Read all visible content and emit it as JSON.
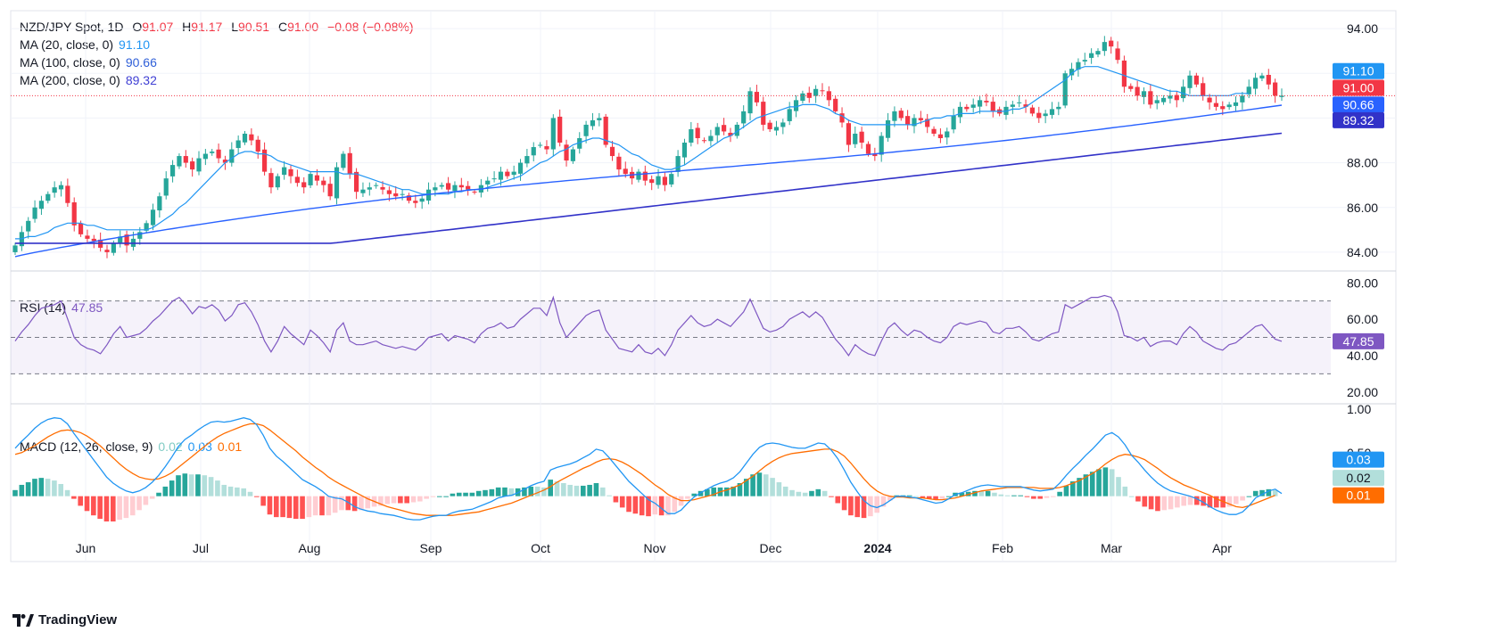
{
  "header": {
    "symbol": "NZD/JPY Spot, 1D",
    "ohlc": {
      "o_label": "O",
      "o": "91.07",
      "h_label": "H",
      "h": "91.17",
      "l_label": "L",
      "l": "90.51",
      "c_label": "C",
      "c": "91.00",
      "change": "−0.08 (−0.08%)"
    },
    "ma20": {
      "label": "MA (20, close, 0)",
      "value": "91.10"
    },
    "ma100": {
      "label": "MA (100, close, 0)",
      "value": "90.66"
    },
    "ma200": {
      "label": "MA (200, close, 0)",
      "value": "89.32"
    }
  },
  "rsi_legend": {
    "label": "RSI (14)",
    "value": "47.85"
  },
  "macd_legend": {
    "label": "MACD (12, 26, close, 9)",
    "hist": "0.02",
    "macd": "0.03",
    "signal": "0.01"
  },
  "branding": {
    "name": "TradingView"
  },
  "colors": {
    "up": "#26a69a",
    "down": "#f23645",
    "ma20": "#2196f3",
    "ma100": "#2962ff",
    "ma200": "#3232c8",
    "rsi": "#7e57c2",
    "macd": "#2196f3",
    "signal": "#ff6d00"
  },
  "chart_data": [
    {
      "type": "candlestick",
      "title": "NZD/JPY Spot, 1D",
      "x_ticks": [
        "Jun",
        "Jul",
        "Aug",
        "Sep",
        "Oct",
        "Nov",
        "Dec",
        "2024",
        "Feb",
        "Mar",
        "Apr"
      ],
      "y_ticks": [
        "84.00",
        "86.00",
        "88.00",
        "90.00",
        "92.00",
        "94.00"
      ],
      "ylim": [
        83.2,
        94.8
      ],
      "close_series": [
        84.3,
        84.9,
        85.4,
        86.0,
        86.3,
        86.6,
        86.9,
        87.0,
        86.2,
        85.2,
        84.8,
        84.6,
        84.5,
        84.2,
        84.0,
        84.4,
        84.7,
        84.3,
        84.6,
        84.9,
        85.3,
        85.9,
        86.5,
        87.3,
        87.9,
        88.3,
        88.0,
        87.7,
        88.2,
        88.4,
        88.5,
        88.2,
        88.0,
        88.6,
        89.0,
        89.3,
        89.0,
        88.5,
        87.6,
        86.9,
        87.4,
        87.8,
        87.4,
        87.1,
        86.9,
        87.5,
        87.2,
        87.0,
        86.5,
        87.8,
        88.4,
        87.5,
        86.7,
        86.8,
        86.9,
        87.0,
        86.8,
        86.6,
        86.5,
        86.6,
        86.3,
        86.2,
        86.4,
        86.8,
        86.9,
        87.0,
        86.8,
        87.0,
        86.9,
        86.8,
        86.7,
        87.0,
        87.2,
        87.3,
        87.6,
        87.4,
        87.6,
        88.0,
        88.3,
        88.7,
        88.8,
        88.6,
        90.0,
        88.9,
        88.1,
        88.6,
        89.1,
        89.7,
        89.9,
        90.0,
        88.8,
        88.3,
        87.7,
        87.5,
        87.3,
        87.6,
        87.2,
        87.1,
        87.4,
        87.0,
        87.5,
        88.3,
        88.9,
        89.5,
        89.1,
        89.0,
        89.2,
        89.6,
        89.4,
        89.2,
        89.7,
        90.3,
        91.2,
        90.7,
        89.7,
        89.5,
        89.6,
        89.8,
        90.4,
        90.8,
        91.1,
        90.9,
        91.3,
        91.2,
        90.8,
        90.3,
        89.8,
        88.8,
        89.3,
        88.9,
        88.4,
        88.3,
        89.2,
        89.9,
        90.3,
        90.0,
        89.7,
        90.0,
        89.9,
        89.6,
        89.3,
        89.1,
        89.4,
        90.1,
        90.5,
        90.4,
        90.6,
        90.8,
        90.7,
        90.3,
        90.2,
        90.5,
        90.6,
        90.7,
        90.5,
        90.2,
        90.0,
        90.2,
        90.4,
        90.5,
        92.0,
        92.2,
        92.5,
        92.6,
        92.9,
        93.0,
        93.4,
        93.2,
        92.6,
        91.4,
        91.3,
        91.0,
        91.2,
        90.6,
        90.8,
        90.9,
        91.0,
        90.8,
        91.4,
        91.9,
        91.5,
        91.0,
        90.7,
        90.5,
        90.4,
        90.6,
        90.7,
        91.0,
        91.4,
        91.8,
        91.9,
        91.5,
        91.0,
        91.0
      ],
      "ma20": [
        84.6,
        84.6,
        84.7,
        84.7,
        84.8,
        84.9,
        85.1,
        85.2,
        85.3,
        85.3,
        85.3,
        85.2,
        85.2,
        85.1,
        85.0,
        85.0,
        85.0,
        85.0,
        85.0,
        85.0,
        85.0,
        85.1,
        85.3,
        85.5,
        85.7,
        86.0,
        86.2,
        86.5,
        86.8,
        87.1,
        87.4,
        87.7,
        88.0,
        88.2,
        88.4,
        88.5,
        88.5,
        88.4,
        88.4,
        88.3,
        88.1,
        88.0,
        87.9,
        87.8,
        87.7,
        87.6,
        87.6,
        87.6,
        87.6,
        87.6,
        87.5,
        87.5,
        87.5,
        87.4,
        87.3,
        87.2,
        87.1,
        87.0,
        86.9,
        86.8,
        86.8,
        86.7,
        86.6,
        86.6,
        86.6,
        86.6,
        86.6,
        86.7,
        86.7,
        86.8,
        86.8,
        86.8,
        86.9,
        87.0,
        87.1,
        87.2,
        87.3,
        87.4,
        87.6,
        87.8,
        88.0,
        88.1,
        88.3,
        88.5,
        88.6,
        88.8,
        88.9,
        89.0,
        89.1,
        89.1,
        89.0,
        88.9,
        88.8,
        88.6,
        88.4,
        88.3,
        88.1,
        87.9,
        87.8,
        87.7,
        87.7,
        87.8,
        87.9,
        88.1,
        88.3,
        88.5,
        88.7,
        88.9,
        89.1,
        89.2,
        89.4,
        89.6,
        89.8,
        90.0,
        90.1,
        90.2,
        90.3,
        90.4,
        90.5,
        90.5,
        90.6,
        90.6,
        90.6,
        90.5,
        90.4,
        90.2,
        90.1,
        89.9,
        89.8,
        89.7,
        89.7,
        89.7,
        89.7,
        89.7,
        89.7,
        89.7,
        89.7,
        89.7,
        89.8,
        89.9,
        90.0,
        90.0,
        90.1,
        90.1,
        90.2,
        90.2,
        90.2,
        90.3,
        90.3,
        90.3,
        90.3,
        90.3,
        90.4,
        90.4,
        90.5,
        90.7,
        90.9,
        91.1,
        91.3,
        91.5,
        91.7,
        92.0,
        92.2,
        92.3,
        92.3,
        92.3,
        92.2,
        92.1,
        92.0,
        91.9,
        91.8,
        91.7,
        91.6,
        91.5,
        91.4,
        91.3,
        91.2,
        91.2,
        91.1,
        91.0,
        91.0,
        91.0,
        91.0,
        91.0,
        91.0,
        91.0,
        91.1,
        91.1,
        91.1
      ]
    },
    {
      "type": "line",
      "title": "RSI (14)",
      "y_ticks": [
        "20.00",
        "40.00",
        "60.00",
        "80.00"
      ],
      "ylim": [
        14,
        86
      ],
      "bands": [
        30,
        50,
        70
      ],
      "rsi": [
        48,
        53,
        57,
        62,
        66,
        67,
        68,
        70,
        60,
        50,
        46,
        44,
        43,
        41,
        46,
        52,
        56,
        50,
        51,
        52,
        55,
        59,
        62,
        66,
        70,
        72,
        68,
        63,
        67,
        66,
        68,
        65,
        59,
        62,
        68,
        69,
        64,
        57,
        48,
        42,
        48,
        56,
        52,
        49,
        46,
        54,
        51,
        47,
        42,
        54,
        58,
        48,
        46,
        46,
        47,
        48,
        46,
        45,
        44,
        45,
        44,
        43,
        46,
        50,
        51,
        52,
        48,
        51,
        50,
        49,
        47,
        52,
        55,
        56,
        58,
        55,
        56,
        60,
        63,
        66,
        66,
        62,
        72,
        58,
        50,
        54,
        58,
        62,
        64,
        65,
        54,
        49,
        44,
        43,
        42,
        46,
        42,
        41,
        44,
        40,
        46,
        54,
        58,
        62,
        58,
        56,
        57,
        60,
        58,
        56,
        60,
        64,
        71,
        63,
        55,
        53,
        54,
        56,
        60,
        62,
        64,
        61,
        64,
        61,
        55,
        49,
        45,
        40,
        46,
        43,
        41,
        40,
        48,
        55,
        58,
        54,
        51,
        54,
        53,
        50,
        48,
        47,
        50,
        56,
        58,
        57,
        58,
        59,
        58,
        53,
        52,
        55,
        55,
        56,
        53,
        49,
        48,
        50,
        52,
        53,
        68,
        66,
        68,
        70,
        72,
        72,
        73,
        72,
        64,
        51,
        50,
        48,
        50,
        45,
        47,
        48,
        48,
        46,
        52,
        56,
        53,
        48,
        46,
        44,
        43,
        46,
        47,
        50,
        53,
        56,
        57,
        53,
        49,
        47.85
      ]
    },
    {
      "type": "line",
      "title": "MACD (12, 26, close, 9)",
      "y_ticks": [
        "0.50",
        "1.00"
      ],
      "ylim": [
        -0.75,
        1.05
      ],
      "series": [
        {
          "name": "MACD",
          "values": [
            0.55,
            0.63,
            0.7,
            0.78,
            0.84,
            0.88,
            0.9,
            0.89,
            0.83,
            0.72,
            0.62,
            0.52,
            0.42,
            0.32,
            0.22,
            0.15,
            0.1,
            0.06,
            0.04,
            0.06,
            0.1,
            0.16,
            0.24,
            0.34,
            0.45,
            0.57,
            0.65,
            0.7,
            0.76,
            0.81,
            0.85,
            0.86,
            0.85,
            0.86,
            0.88,
            0.9,
            0.88,
            0.82,
            0.7,
            0.55,
            0.46,
            0.4,
            0.33,
            0.26,
            0.19,
            0.15,
            0.11,
            0.06,
            0.0,
            -0.02,
            -0.03,
            -0.07,
            -0.12,
            -0.15,
            -0.17,
            -0.18,
            -0.2,
            -0.21,
            -0.22,
            -0.24,
            -0.26,
            -0.27,
            -0.27,
            -0.25,
            -0.23,
            -0.22,
            -0.22,
            -0.19,
            -0.17,
            -0.16,
            -0.15,
            -0.12,
            -0.09,
            -0.06,
            -0.02,
            0.0,
            0.01,
            0.04,
            0.08,
            0.12,
            0.15,
            0.17,
            0.3,
            0.33,
            0.35,
            0.37,
            0.4,
            0.44,
            0.48,
            0.54,
            0.52,
            0.44,
            0.35,
            0.26,
            0.17,
            0.1,
            0.03,
            -0.04,
            -0.08,
            -0.14,
            -0.2,
            -0.2,
            -0.16,
            -0.08,
            -0.01,
            0.04,
            0.08,
            0.12,
            0.15,
            0.17,
            0.21,
            0.28,
            0.38,
            0.48,
            0.56,
            0.6,
            0.61,
            0.6,
            0.58,
            0.56,
            0.55,
            0.55,
            0.58,
            0.61,
            0.6,
            0.53,
            0.43,
            0.3,
            0.16,
            0.05,
            -0.05,
            -0.11,
            -0.13,
            -0.1,
            -0.05,
            0.0,
            0.0,
            -0.01,
            -0.02,
            -0.04,
            -0.06,
            -0.08,
            -0.07,
            -0.03,
            0.02,
            0.04,
            0.07,
            0.1,
            0.12,
            0.13,
            0.12,
            0.11,
            0.11,
            0.11,
            0.11,
            0.09,
            0.07,
            0.06,
            0.07,
            0.08,
            0.15,
            0.24,
            0.32,
            0.39,
            0.47,
            0.54,
            0.62,
            0.7,
            0.73,
            0.68,
            0.59,
            0.47,
            0.39,
            0.3,
            0.22,
            0.15,
            0.1,
            0.06,
            0.04,
            0.02,
            0.0,
            -0.03,
            -0.07,
            -0.12,
            -0.16,
            -0.19,
            -0.21,
            -0.21,
            -0.18,
            -0.11,
            -0.02,
            0.02,
            0.06,
            0.08,
            0.03
          ]
        },
        {
          "name": "Signal",
          "values": [
            0.48,
            0.5,
            0.54,
            0.58,
            0.63,
            0.68,
            0.72,
            0.75,
            0.76,
            0.75,
            0.73,
            0.69,
            0.64,
            0.58,
            0.51,
            0.44,
            0.37,
            0.31,
            0.26,
            0.22,
            0.2,
            0.19,
            0.2,
            0.23,
            0.27,
            0.33,
            0.39,
            0.45,
            0.51,
            0.57,
            0.63,
            0.68,
            0.72,
            0.75,
            0.78,
            0.81,
            0.83,
            0.83,
            0.81,
            0.76,
            0.7,
            0.64,
            0.58,
            0.52,
            0.45,
            0.39,
            0.33,
            0.28,
            0.22,
            0.17,
            0.13,
            0.09,
            0.05,
            0.01,
            -0.03,
            -0.06,
            -0.09,
            -0.12,
            -0.14,
            -0.16,
            -0.18,
            -0.2,
            -0.21,
            -0.22,
            -0.22,
            -0.22,
            -0.22,
            -0.22,
            -0.21,
            -0.2,
            -0.19,
            -0.18,
            -0.16,
            -0.14,
            -0.12,
            -0.1,
            -0.08,
            -0.05,
            -0.02,
            0.01,
            0.04,
            0.07,
            0.11,
            0.16,
            0.2,
            0.24,
            0.28,
            0.32,
            0.35,
            0.39,
            0.42,
            0.43,
            0.42,
            0.39,
            0.35,
            0.3,
            0.25,
            0.19,
            0.13,
            0.08,
            0.02,
            -0.02,
            -0.05,
            -0.05,
            -0.04,
            -0.02,
            0.0,
            0.02,
            0.05,
            0.07,
            0.1,
            0.13,
            0.18,
            0.23,
            0.29,
            0.35,
            0.4,
            0.44,
            0.47,
            0.49,
            0.5,
            0.51,
            0.52,
            0.53,
            0.54,
            0.54,
            0.51,
            0.46,
            0.38,
            0.29,
            0.2,
            0.12,
            0.06,
            0.02,
            0.0,
            -0.01,
            -0.01,
            -0.02,
            -0.02,
            -0.02,
            -0.03,
            -0.04,
            -0.04,
            -0.03,
            -0.02,
            0.0,
            0.02,
            0.04,
            0.06,
            0.07,
            0.08,
            0.09,
            0.1,
            0.1,
            0.1,
            0.1,
            0.1,
            0.09,
            0.09,
            0.09,
            0.1,
            0.12,
            0.15,
            0.18,
            0.22,
            0.26,
            0.31,
            0.37,
            0.42,
            0.46,
            0.48,
            0.47,
            0.45,
            0.42,
            0.37,
            0.32,
            0.26,
            0.21,
            0.17,
            0.13,
            0.1,
            0.07,
            0.04,
            0.01,
            -0.03,
            -0.06,
            -0.09,
            -0.12,
            -0.13,
            -0.11,
            -0.08,
            -0.05,
            -0.02,
            0.01
          ]
        }
      ]
    }
  ]
}
